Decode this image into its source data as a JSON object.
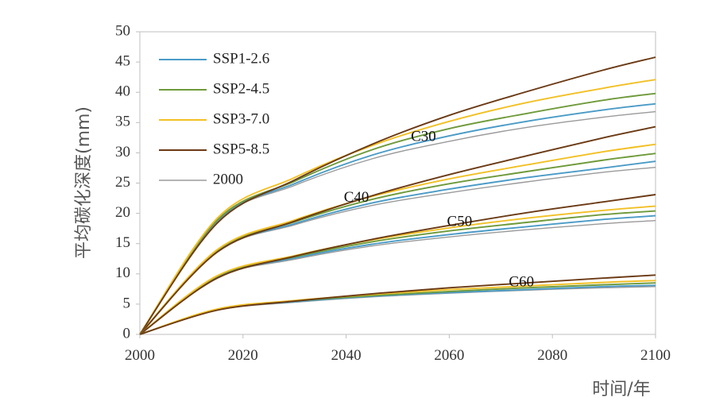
{
  "chart_data": {
    "type": "line",
    "title": "",
    "xlabel": "时间/年",
    "ylabel": "平均碳化深度(mm)",
    "xlim": [
      2000,
      2100
    ],
    "ylim": [
      0,
      50
    ],
    "x_ticks": [
      2000,
      2020,
      2040,
      2060,
      2080,
      2100
    ],
    "y_ticks": [
      0,
      5,
      10,
      15,
      20,
      25,
      30,
      35,
      40,
      45,
      50
    ],
    "grid": false,
    "legend_position": "top-left",
    "x": [
      2000,
      2015,
      2030,
      2045,
      2060,
      2075,
      2090,
      2100
    ],
    "legend": [
      {
        "name": "SSP1-2.6",
        "color": "#4A9BC7"
      },
      {
        "name": "SSP2-4.5",
        "color": "#6E9A3A"
      },
      {
        "name": "SSP3-7.0",
        "color": "#F2C025"
      },
      {
        "name": "SSP5-8.5",
        "color": "#6B3A14"
      },
      {
        "name": "2000",
        "color": "#9A9A9A"
      }
    ],
    "groups": [
      {
        "name": "C30",
        "label_position": {
          "x": 2055,
          "y": 32.5
        },
        "series": [
          {
            "name": "SSP1-2.6",
            "values": [
              0,
              18.8,
              24.9,
              29.6,
              32.8,
              35.2,
              37.1,
              38.1
            ]
          },
          {
            "name": "SSP2-4.5",
            "values": [
              0,
              18.9,
              25.3,
              30.5,
              34.0,
              36.5,
              38.7,
              39.8
            ]
          },
          {
            "name": "SSP3-7.0",
            "values": [
              0,
              19.2,
              25.9,
              31.2,
              35.2,
              38.3,
              40.7,
              42.1
            ]
          },
          {
            "name": "SSP5-8.5",
            "values": [
              0,
              18.4,
              25.5,
              31.4,
              36.2,
              40.1,
              43.7,
              45.8
            ]
          },
          {
            "name": "2000",
            "values": [
              0,
              18.7,
              24.6,
              29.0,
              31.9,
              34.2,
              35.9,
              36.8
            ]
          }
        ]
      },
      {
        "name": "C40",
        "label_position": {
          "x": 2042,
          "y": 22.5
        },
        "series": [
          {
            "name": "SSP1-2.6",
            "values": [
              0,
              13.8,
              18.3,
              21.7,
              24.0,
              25.9,
              27.5,
              28.6
            ]
          },
          {
            "name": "SSP2-4.5",
            "values": [
              0,
              13.9,
              18.6,
              22.3,
              24.9,
              26.9,
              28.8,
              29.9
            ]
          },
          {
            "name": "SSP3-7.0",
            "values": [
              0,
              14.0,
              18.9,
              22.8,
              25.7,
              28.0,
              30.2,
              31.4
            ]
          },
          {
            "name": "SSP5-8.5",
            "values": [
              0,
              13.6,
              18.7,
              22.9,
              26.4,
              29.5,
              32.5,
              34.3
            ]
          },
          {
            "name": "2000",
            "values": [
              0,
              13.7,
              18.1,
              21.3,
              23.4,
              25.2,
              26.8,
              27.6
            ]
          }
        ]
      },
      {
        "name": "C50",
        "label_position": {
          "x": 2062,
          "y": 18.5
        },
        "series": [
          {
            "name": "SSP1-2.6",
            "values": [
              0,
              9.5,
              12.6,
              14.9,
              16.5,
              17.8,
              19.0,
              19.6
            ]
          },
          {
            "name": "SSP2-4.5",
            "values": [
              0,
              9.6,
              12.8,
              15.3,
              17.1,
              18.5,
              19.8,
              20.4
            ]
          },
          {
            "name": "SSP3-7.0",
            "values": [
              0,
              9.7,
              13.0,
              15.6,
              17.6,
              19.2,
              20.5,
              21.2
            ]
          },
          {
            "name": "SSP5-8.5",
            "values": [
              0,
              9.3,
              12.9,
              15.7,
              18.0,
              20.1,
              21.9,
              23.1
            ]
          },
          {
            "name": "2000",
            "values": [
              0,
              9.4,
              12.4,
              14.6,
              16.1,
              17.3,
              18.3,
              18.8
            ]
          }
        ]
      },
      {
        "name": "C60",
        "label_position": {
          "x": 2074,
          "y": 8.5
        },
        "series": [
          {
            "name": "SSP1-2.6",
            "values": [
              0,
              4.1,
              5.4,
              6.3,
              6.9,
              7.4,
              7.9,
              8.1
            ]
          },
          {
            "name": "SSP2-4.5",
            "values": [
              0,
              4.1,
              5.5,
              6.4,
              7.1,
              7.7,
              8.2,
              8.5
            ]
          },
          {
            "name": "SSP3-7.0",
            "values": [
              0,
              4.2,
              5.6,
              6.6,
              7.4,
              8.0,
              8.6,
              8.9
            ]
          },
          {
            "name": "SSP5-8.5",
            "values": [
              0,
              4.0,
              5.5,
              6.7,
              7.7,
              8.5,
              9.3,
              9.8
            ]
          },
          {
            "name": "2000",
            "values": [
              0,
              4.0,
              5.3,
              6.2,
              6.8,
              7.3,
              7.7,
              7.9
            ]
          }
        ]
      }
    ]
  }
}
